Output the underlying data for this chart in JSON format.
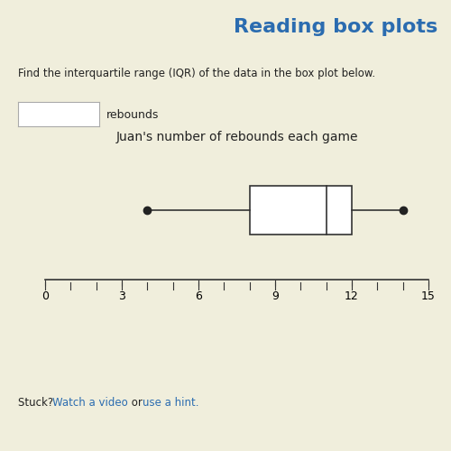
{
  "title": "Juan's number of rebounds each game",
  "page_title": "Reading box plots",
  "question_text": "Find the interquartile range (IQR) of the data in the box plot below.",
  "answer_label": "rebounds",
  "q1": 8,
  "median": 11,
  "q3": 12,
  "whisker_min": 4,
  "whisker_max": 14,
  "x_min": 0,
  "x_max": 15,
  "x_ticks": [
    0,
    3,
    6,
    9,
    12,
    15
  ],
  "bg_color": "#f0eedc",
  "box_color": "#ffffff",
  "box_edge_color": "#333333",
  "whisker_color": "#333333",
  "dot_color": "#222222",
  "title_color": "#2b6cb0",
  "text_color": "#222222",
  "page_title_fontsize": 16,
  "chart_title_fontsize": 10,
  "axis_tick_fontsize": 9
}
